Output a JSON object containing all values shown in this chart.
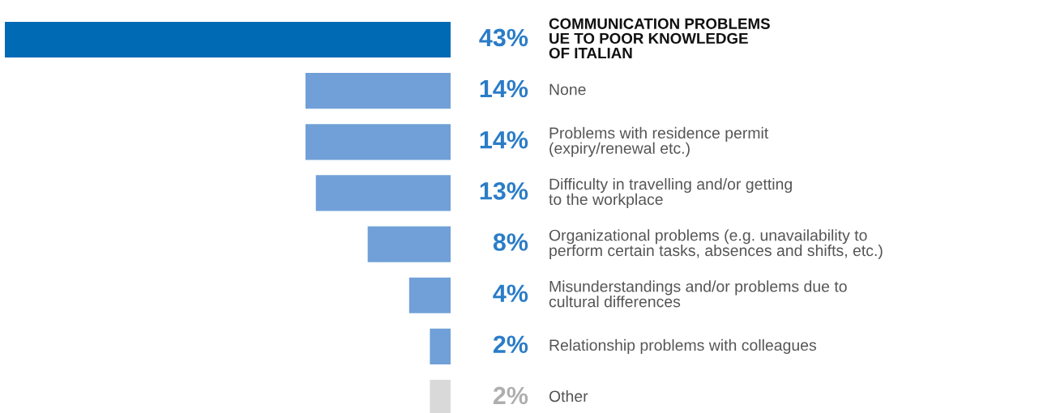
{
  "chart_data": {
    "type": "bar",
    "orientation": "horizontal",
    "categories": [
      "COMMUNICATION PROBLEMS\nUE TO POOR KNOWLEDGE\nOF ITALIAN",
      "None",
      "Problems with residence permit\n(expiry/renewal etc.)",
      "Difficulty in travelling and/or getting\nto the workplace",
      "Organizational problems (e.g. unavailability to\nperform certain tasks, absences and shifts, etc.)",
      "Misunderstandings and/or problems due to\ncultural differences",
      "Relationship problems with colleagues",
      "Other"
    ],
    "values": [
      43,
      14,
      14,
      13,
      8,
      4,
      2,
      2
    ],
    "colors": [
      "#006ab5",
      "#70a0d7",
      "#70a0d7",
      "#70a0d7",
      "#70a0d7",
      "#70a0d7",
      "#70a0d7",
      "#d9d9d9"
    ],
    "value_labels": [
      "43%",
      "14%",
      "14%",
      "13%",
      "8%",
      "4%",
      "2%",
      "2%"
    ]
  }
}
